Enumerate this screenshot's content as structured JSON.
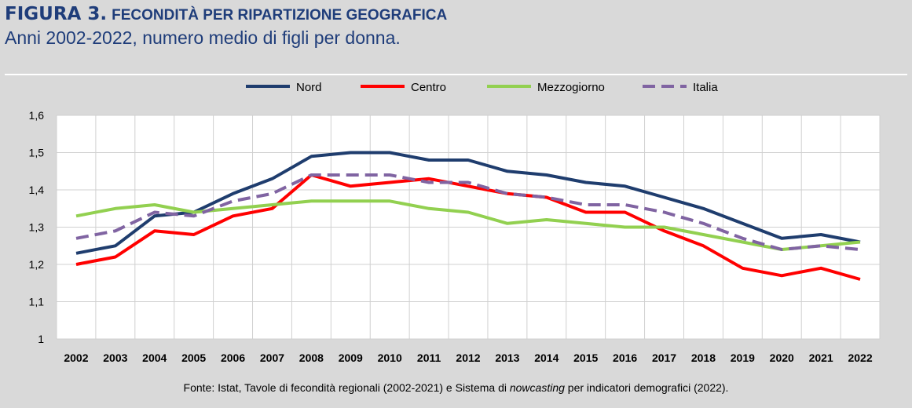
{
  "header": {
    "figure_label": "FIGURA 3.",
    "title": "FECONDITÀ PER RIPARTIZIONE GEOGRAFICA",
    "subtitle": "Anni 2002-2022, numero medio di figli per donna."
  },
  "source": {
    "before": "Fonte: Istat, Tavole di fecondità regionali (2002-2021) e Sistema di ",
    "italic": "nowcasting",
    "after": " per indicatori demografici (2022)."
  },
  "chart_data": {
    "type": "line",
    "title": "FECONDITÀ PER RIPARTIZIONE GEOGRAFICA",
    "subtitle": "Anni 2002-2022, numero medio di figli per donna.",
    "xlabel": "",
    "ylabel": "",
    "ylim": [
      1,
      1.6
    ],
    "yticks": [
      "1",
      "1,1",
      "1,2",
      "1,3",
      "1,4",
      "1,5",
      "1,6"
    ],
    "yticks_values": [
      1,
      1.1,
      1.2,
      1.3,
      1.4,
      1.5,
      1.6
    ],
    "grid": true,
    "legend_position": "top",
    "x": [
      "2002",
      "2003",
      "2004",
      "2005",
      "2006",
      "2007",
      "2008",
      "2009",
      "2010",
      "2011",
      "2012",
      "2013",
      "2014",
      "2015",
      "2016",
      "2017",
      "2018",
      "2019",
      "2020",
      "2021",
      "2022"
    ],
    "series": [
      {
        "name": "Nord",
        "color": "#1f3d6e",
        "dash": false,
        "values": [
          1.23,
          1.25,
          1.33,
          1.34,
          1.39,
          1.43,
          1.49,
          1.5,
          1.5,
          1.48,
          1.48,
          1.45,
          1.44,
          1.42,
          1.41,
          1.38,
          1.35,
          1.31,
          1.27,
          1.28,
          1.26
        ]
      },
      {
        "name": "Centro",
        "color": "#ff0000",
        "dash": false,
        "values": [
          1.2,
          1.22,
          1.29,
          1.28,
          1.33,
          1.35,
          1.44,
          1.41,
          1.42,
          1.43,
          1.41,
          1.39,
          1.38,
          1.34,
          1.34,
          1.29,
          1.25,
          1.19,
          1.17,
          1.19,
          1.16
        ]
      },
      {
        "name": "Mezzogiorno",
        "color": "#92d050",
        "dash": false,
        "values": [
          1.33,
          1.35,
          1.36,
          1.34,
          1.35,
          1.36,
          1.37,
          1.37,
          1.37,
          1.35,
          1.34,
          1.31,
          1.32,
          1.31,
          1.3,
          1.3,
          1.28,
          1.26,
          1.24,
          1.25,
          1.26
        ]
      },
      {
        "name": "Italia",
        "color": "#8064a2",
        "dash": true,
        "values": [
          1.27,
          1.29,
          1.34,
          1.33,
          1.37,
          1.39,
          1.44,
          1.44,
          1.44,
          1.42,
          1.42,
          1.39,
          1.38,
          1.36,
          1.36,
          1.34,
          1.31,
          1.27,
          1.24,
          1.25,
          1.24
        ]
      }
    ]
  }
}
